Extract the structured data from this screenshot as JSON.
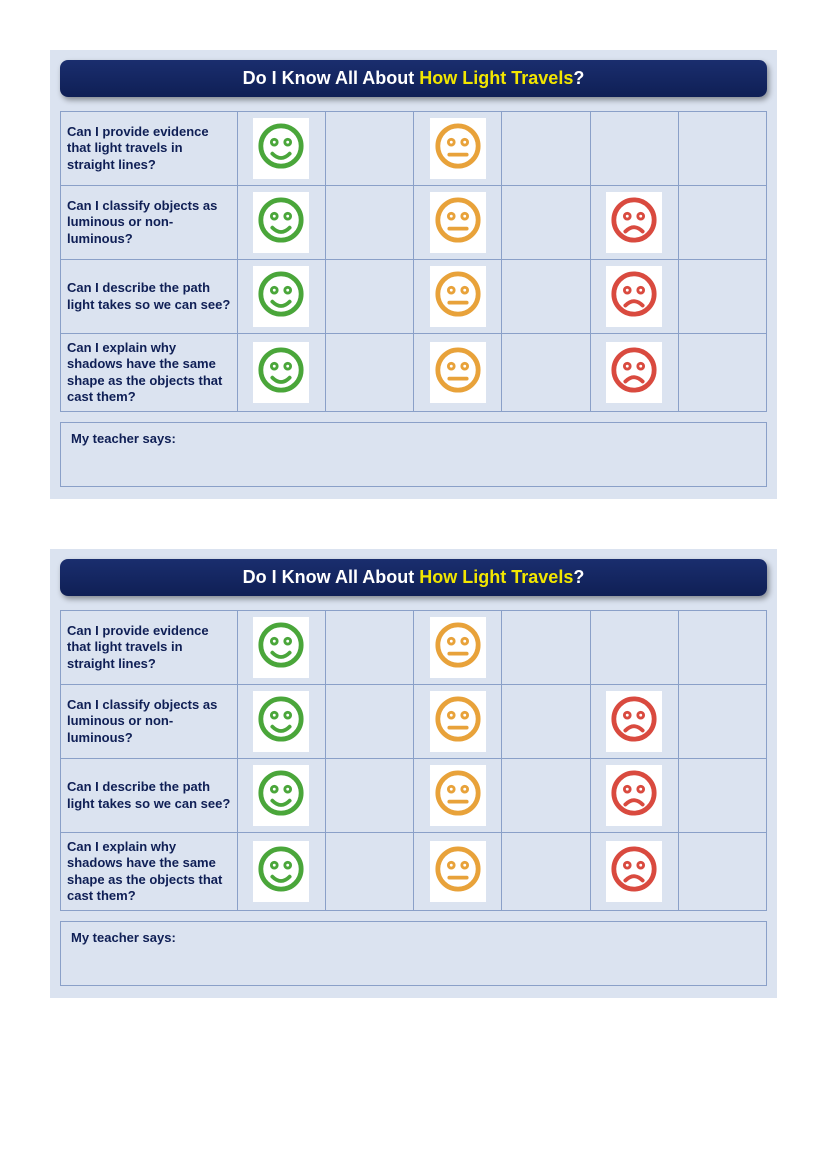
{
  "title_prefix": "Do I Know All About ",
  "title_highlight": "How Light Travels",
  "title_suffix": "?",
  "teacher_label": "My teacher says:",
  "colors": {
    "card_bg": "#dbe3f0",
    "title_bg_top": "#1a2e6e",
    "title_bg_bottom": "#0f1f55",
    "title_text": "#ffffff",
    "title_highlight": "#f2e600",
    "border": "#8aa0c8",
    "question_text": "#0f1f55",
    "happy": "#4aa63a",
    "neutral": "#e8a23a",
    "sad": "#d94a3f"
  },
  "face_size": 48,
  "questions": [
    {
      "text": "Can I provide evidence that light travels in straight lines?",
      "cells": [
        "happy",
        "",
        "neutral",
        "",
        "",
        ""
      ]
    },
    {
      "text": "Can I classify objects as luminous or non-luminous?",
      "cells": [
        "happy",
        "",
        "neutral",
        "",
        "sad",
        ""
      ]
    },
    {
      "text": "Can I describe the path light takes so we can see?",
      "cells": [
        "happy",
        "",
        "neutral",
        "",
        "sad",
        ""
      ]
    },
    {
      "text": "Can I explain why shadows have the same shape as the objects that cast them?",
      "cells": [
        "happy",
        "",
        "neutral",
        "",
        "sad",
        ""
      ]
    }
  ],
  "copies": 2
}
